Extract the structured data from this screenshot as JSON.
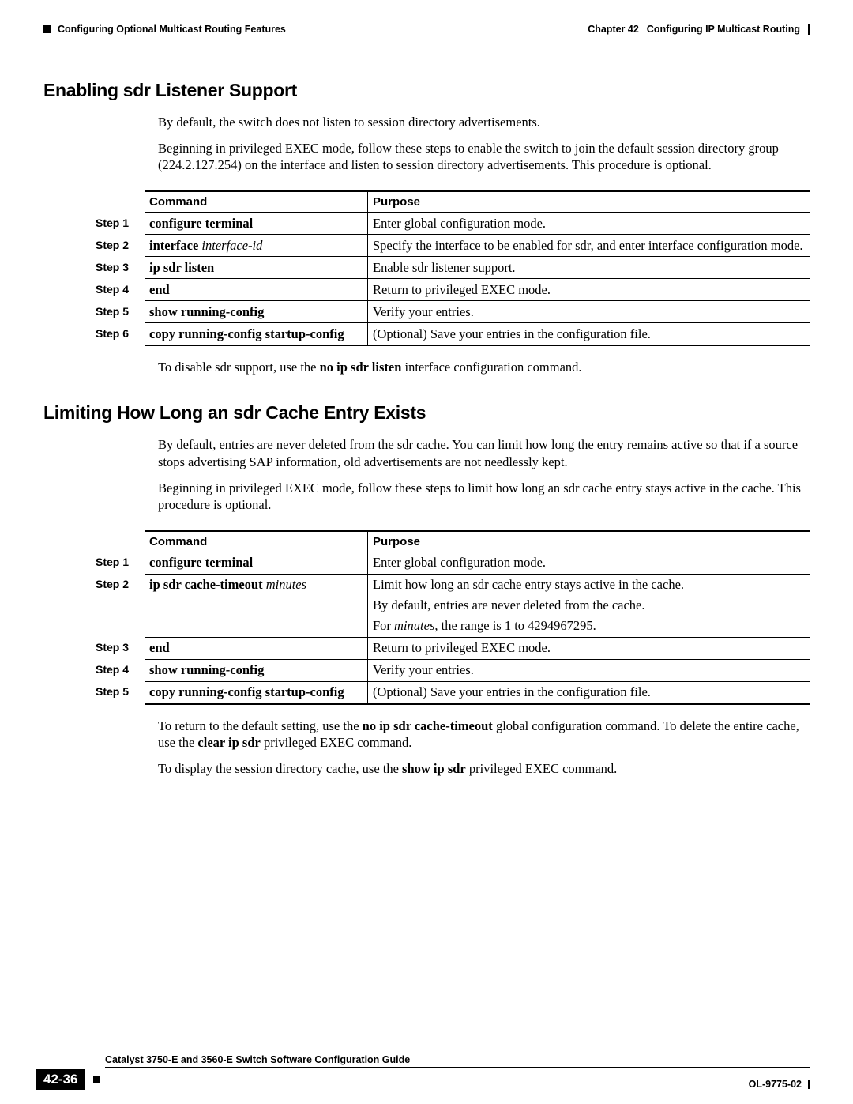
{
  "header": {
    "left_section": "Configuring Optional Multicast Routing Features",
    "right_chapter": "Chapter 42",
    "right_title": "Configuring IP Multicast Routing"
  },
  "section1": {
    "heading": "Enabling sdr Listener Support",
    "para1": "By default, the switch does not listen to session directory advertisements.",
    "para2": "Beginning in privileged EXEC mode, follow these steps to enable the switch to join the default session directory group (224.2.127.254) on the interface and listen to session directory advertisements. This procedure is optional.",
    "note_prefix": "To disable sdr support, use the ",
    "note_bold": "no ip sdr listen",
    "note_suffix": " interface configuration command."
  },
  "table_headers": {
    "command": "Command",
    "purpose": "Purpose"
  },
  "table1": {
    "rows": [
      {
        "step": "Step 1",
        "cmd": "configure terminal",
        "arg": "",
        "purpose": "Enter global configuration mode."
      },
      {
        "step": "Step 2",
        "cmd": "interface ",
        "arg": "interface-id",
        "purpose": "Specify the interface to be enabled for sdr, and enter interface configuration mode."
      },
      {
        "step": "Step 3",
        "cmd": "ip sdr listen",
        "arg": "",
        "purpose": "Enable sdr listener support."
      },
      {
        "step": "Step 4",
        "cmd": "end",
        "arg": "",
        "purpose": "Return to privileged EXEC mode."
      },
      {
        "step": "Step 5",
        "cmd": "show running-config",
        "arg": "",
        "purpose": "Verify your entries."
      },
      {
        "step": "Step 6",
        "cmd": "copy running-config startup-config",
        "arg": "",
        "purpose": "(Optional) Save your entries in the configuration file."
      }
    ]
  },
  "section2": {
    "heading": "Limiting How Long an sdr Cache Entry Exists",
    "para1": "By default, entries are never deleted from the sdr cache. You can limit how long the entry remains active so that if a source stops advertising SAP information, old advertisements are not needlessly kept.",
    "para2": "Beginning in privileged EXEC mode, follow these steps to limit how long an sdr cache entry stays active in the cache. This procedure is optional.",
    "noteA_prefix": "To return to the default setting, use the ",
    "noteA_bold1": "no ip sdr cache-timeout",
    "noteA_mid": " global configuration command. To delete the entire cache, use the ",
    "noteA_bold2": "clear ip sdr",
    "noteA_suffix": " privileged EXEC command.",
    "noteB_prefix": "To display the session directory cache, use the ",
    "noteB_bold": "show ip sdr",
    "noteB_suffix": " privileged EXEC command."
  },
  "table2": {
    "rows": [
      {
        "step": "Step 1",
        "cmd": "configure terminal",
        "arg": "",
        "purpose": "Enter global configuration mode."
      },
      {
        "step": "Step 2",
        "cmd": "ip sdr cache-timeout ",
        "arg": "minutes",
        "purpose_multi": [
          "Limit how long an sdr cache entry stays active in the cache.",
          "By default, entries are never deleted from the cache.",
          {
            "pre": "For ",
            "it": "minutes",
            "post": ", the range is 1 to 4294967295."
          }
        ]
      },
      {
        "step": "Step 3",
        "cmd": "end",
        "arg": "",
        "purpose": "Return to privileged EXEC mode."
      },
      {
        "step": "Step 4",
        "cmd": "show running-config",
        "arg": "",
        "purpose": "Verify your entries."
      },
      {
        "step": "Step 5",
        "cmd": "copy running-config startup-config",
        "arg": "",
        "purpose": "(Optional) Save your entries in the configuration file."
      }
    ]
  },
  "footer": {
    "guide_title": "Catalyst 3750-E and 3560-E Switch Software Configuration Guide",
    "page_number": "42-36",
    "doc_id": "OL-9775-02"
  }
}
